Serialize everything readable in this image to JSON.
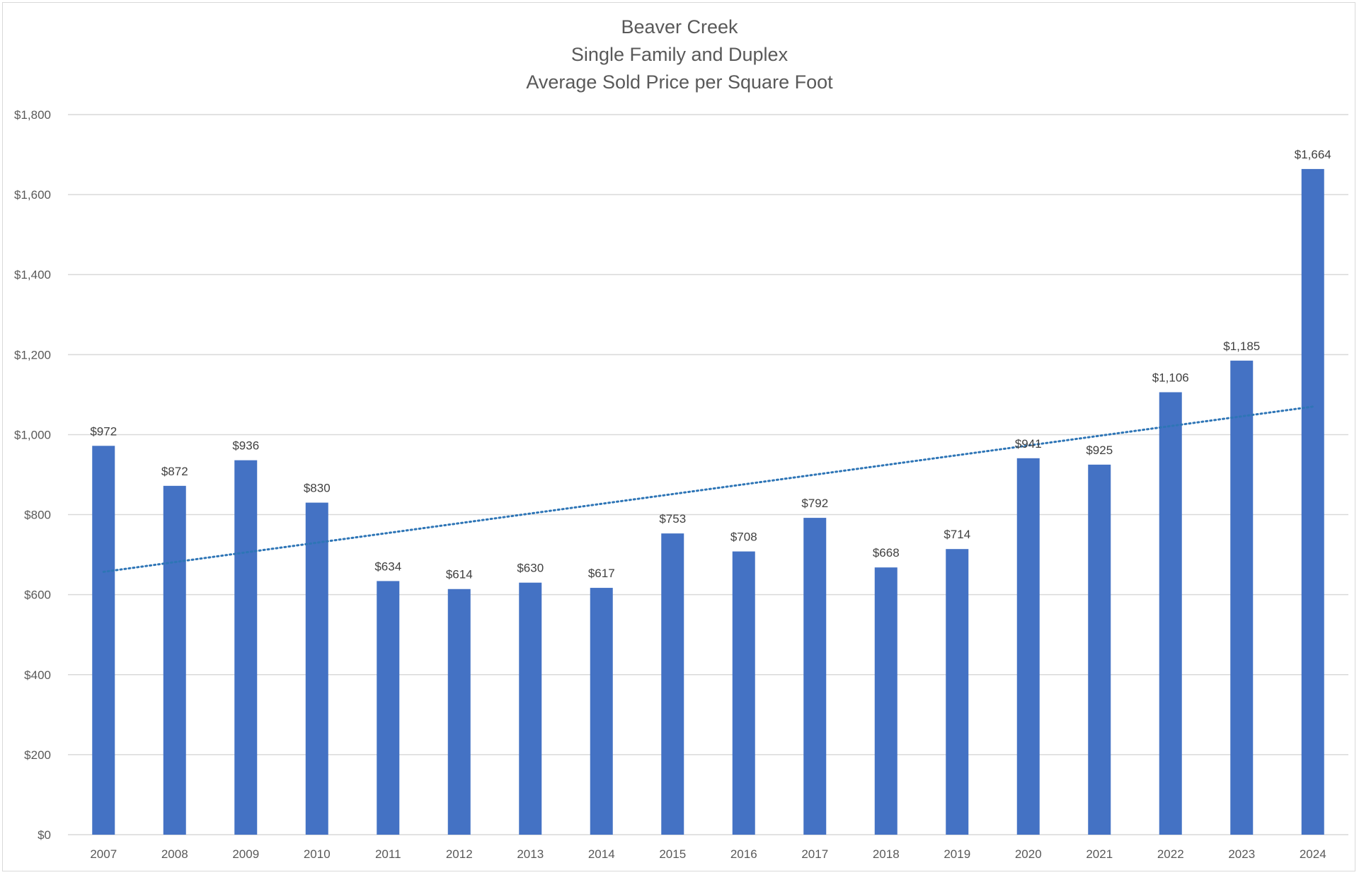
{
  "chart_data": {
    "type": "bar",
    "title_lines": [
      "Beaver Creek",
      "Single Family and Duplex",
      "Average Sold Price per Square Foot"
    ],
    "categories": [
      "2007",
      "2008",
      "2009",
      "2010",
      "2011",
      "2012",
      "2013",
      "2014",
      "2015",
      "2016",
      "2017",
      "2018",
      "2019",
      "2020",
      "2021",
      "2022",
      "2023",
      "2024"
    ],
    "values": [
      972,
      872,
      936,
      830,
      634,
      614,
      630,
      617,
      753,
      708,
      792,
      668,
      714,
      941,
      925,
      1106,
      1185,
      1664
    ],
    "data_labels": [
      "$972",
      "$872",
      "$936",
      "$830",
      "$634",
      "$614",
      "$630",
      "$617",
      "$753",
      "$708",
      "$792",
      "$668",
      "$714",
      "$941",
      "$925",
      "$1,106",
      "$1,185",
      "$1,664"
    ],
    "y_ticks": [
      0,
      200,
      400,
      600,
      800,
      1000,
      1200,
      1400,
      1600,
      1800
    ],
    "y_tick_labels": [
      "$0",
      "$200",
      "$400",
      "$600",
      "$800",
      "$1,000",
      "$1,200",
      "$1,400",
      "$1,600",
      "$1,800"
    ],
    "ylim": [
      0,
      1800
    ],
    "xlabel": "",
    "ylabel": "",
    "grid": true,
    "legend": "none",
    "trendline": {
      "type": "linear",
      "style": "dotted",
      "start_value": 657,
      "end_value": 1070
    },
    "bar_color": "#4472C4",
    "trendline_color": "#2E75B6",
    "grid_color": "#d9d9d9"
  }
}
